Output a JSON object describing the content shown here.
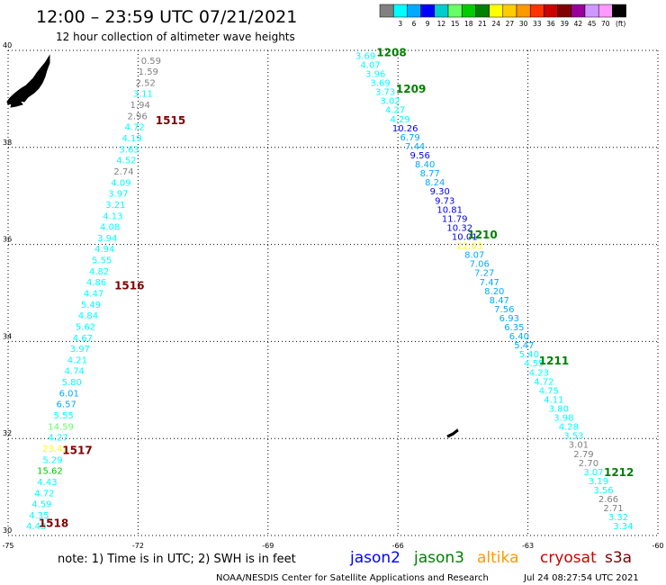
{
  "header": {
    "title": "12:00 – 23:59 UTC 07/21/2021",
    "subtitle": "12 hour collection of altimeter wave heights"
  },
  "colorbar": {
    "labels": [
      "3",
      "6",
      "9",
      "12",
      "15",
      "18",
      "21",
      "24",
      "27",
      "30",
      "33",
      "36",
      "39",
      "42",
      "45",
      "70"
    ],
    "unit": "(ft)",
    "colors": [
      "#808080",
      "#00ffff",
      "#00aaff",
      "#0000ff",
      "#00cccc",
      "#66ff66",
      "#00cc00",
      "#008000",
      "#ffff00",
      "#ffcc00",
      "#ff9900",
      "#ff3300",
      "#cc0000",
      "#800000",
      "#990099",
      "#cc99ff",
      "#ff99ff",
      "#000000"
    ]
  },
  "footer": {
    "note": "note:  1) Time is in UTC;  2) SWH is in feet",
    "satellites": [
      {
        "label": "jason2",
        "color": "#0000ff"
      },
      {
        "label": "jason3",
        "color": "#008000"
      },
      {
        "label": "altika",
        "color": "#ff9900"
      },
      {
        "label": "cryosat",
        "color": "#cc0000"
      },
      {
        "label": "s3a",
        "color": "#800000"
      }
    ],
    "credit": "NOAA/NESDIS Center for Satellite Applications and Research",
    "timestamp": "Jul 24 08:27:54 UTC 2021"
  },
  "chart_data": {
    "type": "scatter",
    "xlim": [
      -75,
      -60
    ],
    "ylim": [
      30,
      40
    ],
    "x_ticks": [
      "-75",
      "-72",
      "-69",
      "-66",
      "-63",
      "-60"
    ],
    "y_ticks": [
      "40",
      "38",
      "36",
      "34",
      "32",
      "30"
    ],
    "grid": true,
    "tracks": [
      {
        "name": "west",
        "lon_top": -71.7,
        "lat_top": 39.8,
        "lon_bottom": -74.35,
        "lat_bottom": 30.2,
        "values": [
          "0.59",
          "1.59",
          "2.52",
          "3.11",
          "1.94",
          "2.96",
          "4.72",
          "4.19",
          "3.63",
          "4.52",
          "2.74",
          "4.09",
          "3.97",
          "3.21",
          "4.13",
          "4.08",
          "3.94",
          "4.94",
          "5.55",
          "4.82",
          "4.86",
          "4.47",
          "5.49",
          "4.84",
          "5.62",
          "4.67",
          "3.97",
          "4.21",
          "4.74",
          "5.80",
          "6.01",
          "6.57",
          "5.55",
          "14.59",
          "4.27",
          "23.41",
          "5.29",
          "15.62",
          "4.43",
          "4.72",
          "4.59",
          "4.35",
          "4.43"
        ],
        "colors": [
          "#808080",
          "#808080",
          "#808080",
          "#00ffff",
          "#808080",
          "#808080",
          "#00ffff",
          "#00ffff",
          "#00ffff",
          "#00ffff",
          "#808080",
          "#00ffff",
          "#00ffff",
          "#00ffff",
          "#00ffff",
          "#00ffff",
          "#00ffff",
          "#00ffff",
          "#00ffff",
          "#00ffff",
          "#00ffff",
          "#00ffff",
          "#00ffff",
          "#00ffff",
          "#00ffff",
          "#00ffff",
          "#00ffff",
          "#00ffff",
          "#00ffff",
          "#00ffff",
          "#00aaff",
          "#00aaff",
          "#00ffff",
          "#66ff66",
          "#00ffff",
          "#ffff00",
          "#00ffff",
          "#00cc00",
          "#00ffff",
          "#00ffff",
          "#00ffff",
          "#00ffff",
          "#00ffff"
        ]
      },
      {
        "name": "east",
        "lon_top": -66.75,
        "lat_top": 39.9,
        "lon_bottom": -60.8,
        "lat_bottom": 30.2,
        "values": [
          "3.69",
          "4.07",
          "3.96",
          "3.69",
          "3.73",
          "3.02",
          "4.27",
          "4.29",
          "10.26",
          "6.79",
          "7.44",
          "9.56",
          "8.40",
          "8.77",
          "8.24",
          "9.30",
          "9.73",
          "10.81",
          "11.79",
          "10.32",
          "10.01",
          "22.03",
          "8.07",
          "7.06",
          "7.27",
          "7.47",
          "8.20",
          "8.47",
          "7.56",
          "6.93",
          "6.35",
          "6.40",
          "5.47",
          "5.40",
          "4.55",
          "4.23",
          "4.72",
          "4.75",
          "4.11",
          "3.80",
          "3.98",
          "4.28",
          "3.53",
          "3.01",
          "2.79",
          "2.70",
          "3.07",
          "3.19",
          "3.56",
          "2.66",
          "2.71",
          "3.32",
          "3.34"
        ],
        "colors": [
          "#00ffff",
          "#00ffff",
          "#00ffff",
          "#00ffff",
          "#00ffff",
          "#00ffff",
          "#00ffff",
          "#00ffff",
          "#0000ff",
          "#00aaff",
          "#00aaff",
          "#0000ff",
          "#00aaff",
          "#00aaff",
          "#00aaff",
          "#0000ff",
          "#0000ff",
          "#0000ff",
          "#0000ff",
          "#0000ff",
          "#0000ff",
          "#ffff00",
          "#00aaff",
          "#00aaff",
          "#00aaff",
          "#00aaff",
          "#00aaff",
          "#00aaff",
          "#00aaff",
          "#00aaff",
          "#00aaff",
          "#00aaff",
          "#00aaff",
          "#00ffff",
          "#00ffff",
          "#00ffff",
          "#00ffff",
          "#00ffff",
          "#00ffff",
          "#00ffff",
          "#00ffff",
          "#00ffff",
          "#00ffff",
          "#808080",
          "#808080",
          "#808080",
          "#00ffff",
          "#00ffff",
          "#00ffff",
          "#808080",
          "#808080",
          "#00ffff",
          "#00ffff"
        ]
      }
    ],
    "pass_times": [
      {
        "label": "1515",
        "lon": -71.25,
        "lat": 38.55,
        "color": "#800000"
      },
      {
        "label": "1516",
        "lon": -72.2,
        "lat": 35.15,
        "color": "#800000"
      },
      {
        "label": "1517",
        "lon": -73.4,
        "lat": 31.75,
        "color": "#800000"
      },
      {
        "label": "1518",
        "lon": -73.95,
        "lat": 30.25,
        "color": "#800000"
      },
      {
        "label": "1208",
        "lon": -66.15,
        "lat": 39.95,
        "color": "#008000"
      },
      {
        "label": "1209",
        "lon": -65.7,
        "lat": 39.2,
        "color": "#008000"
      },
      {
        "label": "1210",
        "lon": -64.05,
        "lat": 36.2,
        "color": "#008000"
      },
      {
        "label": "1211",
        "lon": -62.4,
        "lat": 33.6,
        "color": "#008000"
      },
      {
        "label": "1212",
        "lon": -60.9,
        "lat": 31.3,
        "color": "#008000"
      }
    ]
  }
}
